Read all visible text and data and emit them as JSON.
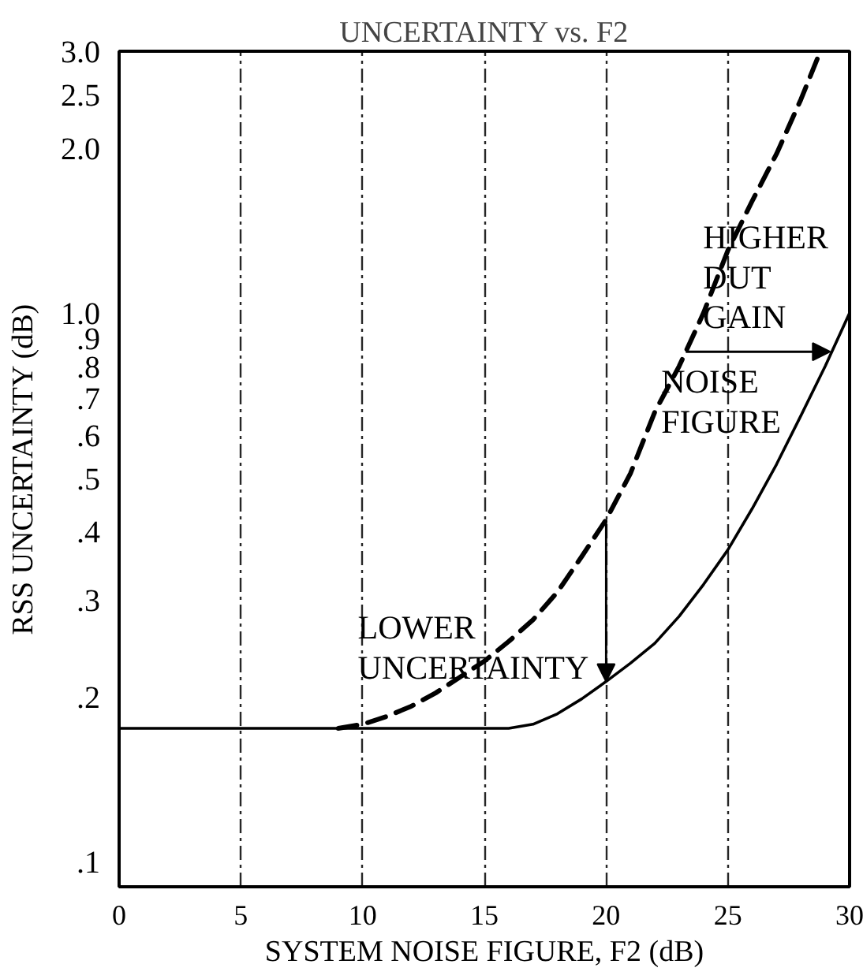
{
  "chart_data": {
    "type": "line",
    "title": "UNCERTAINTY vs. F2",
    "xlabel": "SYSTEM NOISE FIGURE, F2 (dB)",
    "ylabel": "RSS UNCERTAINTY (dB)",
    "log": "y",
    "xlim": [
      0,
      30
    ],
    "xticks": [
      0,
      5,
      10,
      15,
      20,
      25,
      30
    ],
    "ylim": [
      0.09,
      3.0
    ],
    "yticks": [
      {
        "value": 0.1,
        "label": ".1"
      },
      {
        "value": 0.2,
        "label": ".2"
      },
      {
        "value": 0.3,
        "label": ".3"
      },
      {
        "value": 0.4,
        "label": ".4"
      },
      {
        "value": 0.5,
        "label": ".5"
      },
      {
        "value": 0.6,
        "label": ".6"
      },
      {
        "value": 0.7,
        "label": ".7"
      },
      {
        "value": 0.8,
        "label": ".8"
      },
      {
        "value": 0.9,
        "label": ".9"
      },
      {
        "value": 1.0,
        "label": "1.0"
      },
      {
        "value": 2.0,
        "label": "2.0"
      },
      {
        "value": 2.5,
        "label": "2.5"
      },
      {
        "value": 3.0,
        "label": "3.0"
      }
    ],
    "grid": "x",
    "series": [
      {
        "color": "#000000",
        "line_style": "solid",
        "x": [
          0,
          16,
          17,
          18,
          19,
          20,
          21,
          22,
          23,
          24,
          25,
          26,
          27,
          28,
          29,
          30
        ],
        "values": [
          0.175,
          0.175,
          0.178,
          0.186,
          0.198,
          0.213,
          0.23,
          0.25,
          0.28,
          0.32,
          0.37,
          0.44,
          0.53,
          0.65,
          0.8,
          1.0
        ]
      },
      {
        "color": "#000000",
        "line_style": "dashed",
        "x": [
          9,
          10,
          11,
          12,
          13,
          14,
          15,
          16,
          17,
          18,
          19,
          20,
          21,
          22,
          23,
          24,
          25,
          26,
          27,
          28,
          28.8
        ],
        "values": [
          0.175,
          0.178,
          0.184,
          0.192,
          0.203,
          0.217,
          0.232,
          0.252,
          0.276,
          0.31,
          0.36,
          0.42,
          0.51,
          0.66,
          0.8,
          1.0,
          1.3,
          1.6,
          1.95,
          2.45,
          3.0
        ]
      }
    ],
    "annotations": [
      {
        "text": "LOWER\nUNCERTAINTY",
        "x": 20,
        "y": 0.213
      },
      {
        "text": "HIGHER\nDUT\nGAIN",
        "x": 29.2,
        "y": 0.85
      },
      {
        "text": "NOISE\nFIGURE",
        "x": 23.3,
        "y": 0.85
      }
    ]
  }
}
